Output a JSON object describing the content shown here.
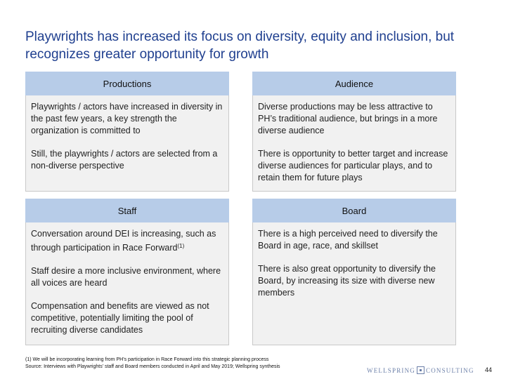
{
  "title": "Playwrights has increased its focus on diversity, equity and inclusion, but recognizes greater opportunity for growth",
  "panels": {
    "productions": {
      "heading": "Productions",
      "paragraphs": [
        "Playwrights / actors have increased in diversity in the past few years, a key strength the organization is committed to",
        "Still, the playwrights / actors are selected from a non-diverse perspective"
      ]
    },
    "audience": {
      "heading": "Audience",
      "paragraphs": [
        "Diverse productions may be less attractive to PH’s traditional audience, but brings in a more diverse audience",
        "There is opportunity to better target and increase diverse audiences for particular plays, and to retain them for future plays"
      ]
    },
    "staff": {
      "heading": "Staff",
      "p1": "Conversation around DEI is increasing, such as through participation in Race Forward",
      "p1_sup": "(1)",
      "p2": "Staff desire a more inclusive environment, where all voices are heard",
      "p3": "Compensation and benefits are viewed as not competitive, potentially limiting the pool of recruiting diverse candidates"
    },
    "board": {
      "heading": "Board",
      "paragraphs": [
        "There is a high perceived need to diversify the Board in age, race, and skillset",
        "There is also great opportunity to diversify the Board, by increasing its size with diverse new members"
      ]
    }
  },
  "footnote": {
    "marker": "(1)",
    "note": "We will be incorporating learning from PH’s participation in Race Forward into this strategic planning process",
    "source": "Source: Interviews with Playwrights' staff and Board members conducted in April and May 2019; Wellspring synthesis"
  },
  "brand": {
    "left": "WELLSPRING",
    "right": "CONSULTING"
  },
  "page_number": "44"
}
